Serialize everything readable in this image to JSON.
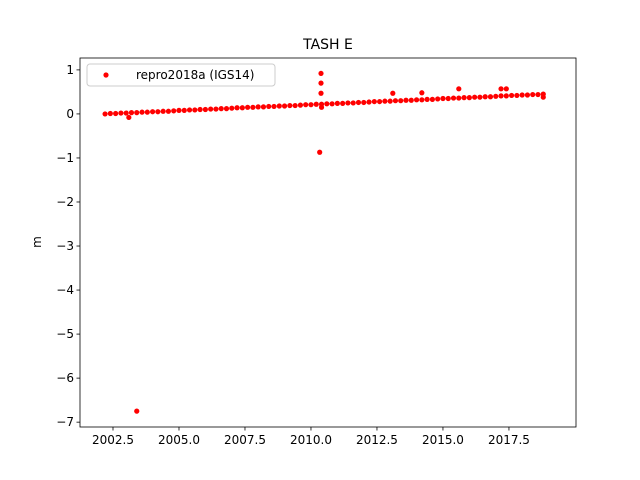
{
  "chart_data": {
    "type": "scatter",
    "title": "TASH E",
    "y_label": "m",
    "xlim": [
      2001.25,
      2020.04
    ],
    "ylim": [
      -7.11,
      1.27
    ],
    "xticks": [
      2002.5,
      {
        "value": 2005,
        "label": "2005.0"
      },
      2007.5,
      {
        "value": 2010,
        "label": "2010.0"
      },
      2012.5,
      {
        "value": 2015,
        "label": "2015.0"
      },
      2017.5
    ],
    "yticks": [
      {
        "value": -7,
        "label": "−7"
      },
      {
        "value": -6,
        "label": "−6"
      },
      {
        "value": -5,
        "label": "−5"
      },
      {
        "value": -4,
        "label": "−4"
      },
      {
        "value": -3,
        "label": "−3"
      },
      {
        "value": -2,
        "label": "−2"
      },
      {
        "value": -1,
        "label": "−1"
      },
      0,
      1
    ],
    "grid": false,
    "legend_position": "upper-left",
    "series": [
      {
        "name": "repro2018a (IGS14)",
        "color": "#ff0000",
        "x": [
          2002.2,
          2002.4,
          2002.6,
          2002.8,
          2003.0,
          2003.2,
          2003.4,
          2003.6,
          2003.8,
          2004.0,
          2004.2,
          2004.4,
          2004.6,
          2004.8,
          2005.0,
          2005.2,
          2005.4,
          2005.6,
          2005.8,
          2006.0,
          2006.2,
          2006.4,
          2006.6,
          2006.8,
          2007.0,
          2007.2,
          2007.4,
          2007.6,
          2007.8,
          2008.0,
          2008.2,
          2008.4,
          2008.6,
          2008.8,
          2009.0,
          2009.2,
          2009.4,
          2009.6,
          2009.8,
          2010.0,
          2010.2,
          2010.4,
          2010.6,
          2010.8,
          2011.0,
          2011.2,
          2011.4,
          2011.6,
          2011.8,
          2012.0,
          2012.2,
          2012.4,
          2012.6,
          2012.8,
          2013.0,
          2013.2,
          2013.4,
          2013.6,
          2013.8,
          2014.0,
          2014.2,
          2014.4,
          2014.6,
          2014.8,
          2015.0,
          2015.2,
          2015.4,
          2015.6,
          2015.8,
          2016.0,
          2016.2,
          2016.4,
          2016.6,
          2016.8,
          2017.0,
          2017.2,
          2017.4,
          2017.6,
          2017.8,
          2018.0,
          2018.2,
          2018.4,
          2018.6,
          2018.8,
          2003.4,
          2010.38,
          2010.38,
          2010.38,
          2010.33,
          2013.1,
          2014.2,
          2015.6,
          2017.2,
          2017.4,
          2003.1,
          2010.4,
          2018.8
        ],
        "values": [
          0.0,
          0.01,
          0.01,
          0.02,
          0.02,
          0.03,
          0.03,
          0.04,
          0.04,
          0.05,
          0.05,
          0.06,
          0.06,
          0.07,
          0.08,
          0.08,
          0.09,
          0.09,
          0.1,
          0.1,
          0.11,
          0.11,
          0.12,
          0.12,
          0.13,
          0.14,
          0.14,
          0.15,
          0.15,
          0.16,
          0.16,
          0.17,
          0.17,
          0.18,
          0.18,
          0.19,
          0.19,
          0.2,
          0.21,
          0.21,
          0.22,
          0.22,
          0.23,
          0.23,
          0.24,
          0.24,
          0.25,
          0.25,
          0.26,
          0.26,
          0.27,
          0.28,
          0.28,
          0.29,
          0.29,
          0.3,
          0.3,
          0.31,
          0.31,
          0.32,
          0.32,
          0.33,
          0.33,
          0.34,
          0.35,
          0.35,
          0.36,
          0.36,
          0.37,
          0.37,
          0.38,
          0.38,
          0.39,
          0.39,
          0.4,
          0.41,
          0.41,
          0.42,
          0.42,
          0.43,
          0.43,
          0.44,
          0.44,
          0.45,
          -6.75,
          0.92,
          0.7,
          0.47,
          -0.87,
          0.47,
          0.48,
          0.57,
          0.57,
          0.57,
          -0.08,
          0.15,
          0.38
        ]
      }
    ]
  }
}
